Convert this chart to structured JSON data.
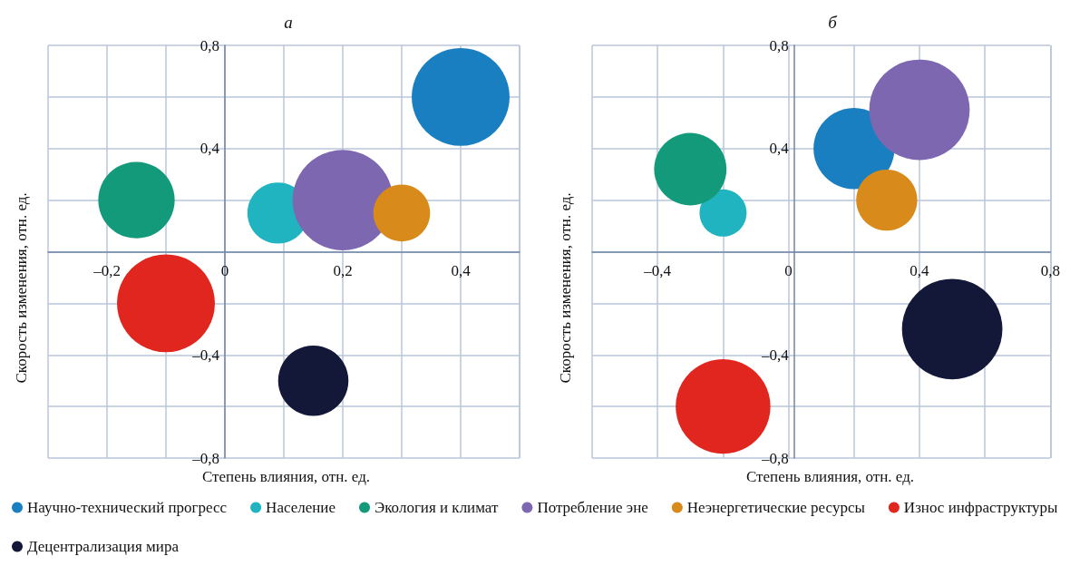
{
  "chart_data": [
    {
      "type": "bubble",
      "title": "а",
      "xlabel": "Степень влияния, отн. ед.",
      "ylabel": "Скорость изменения, отн. ед.",
      "xlim": [
        -0.3,
        0.5
      ],
      "ylim": [
        -0.8,
        0.8
      ],
      "xticks": [
        {
          "value": -0.3,
          "label": null
        },
        {
          "value": -0.2,
          "label": "–0,2"
        },
        {
          "value": -0.1,
          "label": null
        },
        {
          "value": 0,
          "label": "0"
        },
        {
          "value": 0.1,
          "label": null
        },
        {
          "value": 0.2,
          "label": "0,2"
        },
        {
          "value": 0.3,
          "label": null
        },
        {
          "value": 0.4,
          "label": "0,4"
        },
        {
          "value": 0.5,
          "label": null
        }
      ],
      "yticks": [
        {
          "value": -0.8,
          "label": "–0,8"
        },
        {
          "value": -0.6,
          "label": null
        },
        {
          "value": -0.4,
          "label": "–0,4"
        },
        {
          "value": -0.2,
          "label": null
        },
        {
          "value": 0,
          "label": null
        },
        {
          "value": 0.2,
          "label": null
        },
        {
          "value": 0.4,
          "label": "0,4"
        },
        {
          "value": 0.6,
          "label": null
        },
        {
          "value": 0.8,
          "label": "0,8"
        }
      ],
      "grid": true,
      "legend": "bottom",
      "marker": "circle",
      "series": [
        {
          "name": "Научно-технический прогресс",
          "color": "#1a7fc0",
          "x": [
            0.4
          ],
          "values": [
            0.6
          ],
          "sizes": [
            0.95
          ]
        },
        {
          "name": "Население",
          "color": "#20b3c0",
          "x": [
            0.09
          ],
          "values": [
            0.15
          ],
          "sizes": [
            0.37
          ]
        },
        {
          "name": "Экология и климат",
          "color": "#139a7a",
          "x": [
            -0.15
          ],
          "values": [
            0.2
          ],
          "sizes": [
            0.58
          ]
        },
        {
          "name": "Потребление эне",
          "color": "#7d67b0",
          "x": [
            0.2
          ],
          "values": [
            0.2
          ],
          "sizes": [
            1
          ]
        },
        {
          "name": "Неэнергетические ресурсы",
          "color": "#d88a1a",
          "x": [
            0.3
          ],
          "values": [
            0.15
          ],
          "sizes": [
            0.32
          ]
        },
        {
          "name": "Износ инфраструктуры",
          "color": "#e0261e",
          "x": [
            -0.1
          ],
          "values": [
            -0.2
          ],
          "sizes": [
            0.95
          ]
        },
        {
          "name": "Децентрализация мира",
          "color": "#141838",
          "x": [
            0.15
          ],
          "values": [
            -0.5
          ],
          "sizes": [
            0.49
          ]
        }
      ]
    },
    {
      "type": "bubble",
      "title": "б",
      "xlabel": "Степень влияния, отн. ед.",
      "ylabel": "Скорость изменения, отн. ед.",
      "xlim": [
        -0.6,
        0.8
      ],
      "ylim": [
        -0.8,
        0.8
      ],
      "xticks": [
        {
          "value": -0.6,
          "label": null
        },
        {
          "value": -0.4,
          "label": "–0,4"
        },
        {
          "value": -0.2,
          "label": null
        },
        {
          "value": 0,
          "label": "0"
        },
        {
          "value": 0.2,
          "label": null
        },
        {
          "value": 0.4,
          "label": "0,4"
        },
        {
          "value": 0.6,
          "label": null
        },
        {
          "value": 0.8,
          "label": "0,8"
        }
      ],
      "yticks": [
        {
          "value": -0.8,
          "label": "–0,8"
        },
        {
          "value": -0.6,
          "label": null
        },
        {
          "value": -0.4,
          "label": "–0,4"
        },
        {
          "value": -0.2,
          "label": null
        },
        {
          "value": 0,
          "label": null
        },
        {
          "value": 0.2,
          "label": null
        },
        {
          "value": 0.4,
          "label": "0,4"
        },
        {
          "value": 0.6,
          "label": null
        },
        {
          "value": 0.8,
          "label": "0,8"
        }
      ],
      "grid": true,
      "marker": "circle",
      "series": [
        {
          "name": "Научно-технический прогресс",
          "color": "#1a7fc0",
          "x": [
            0.2
          ],
          "values": [
            0.4
          ],
          "sizes": [
            0.65
          ]
        },
        {
          "name": "Население",
          "color": "#20b3c0",
          "x": [
            -0.2
          ],
          "values": [
            0.15
          ],
          "sizes": [
            0.22
          ]
        },
        {
          "name": "Экология и климат",
          "color": "#139a7a",
          "x": [
            -0.3
          ],
          "values": [
            0.32
          ],
          "sizes": [
            0.52
          ]
        },
        {
          "name": "Потребление эне",
          "color": "#7d67b0",
          "x": [
            0.4
          ],
          "values": [
            0.55
          ],
          "sizes": [
            1
          ]
        },
        {
          "name": "Неэнергетические ресурсы",
          "color": "#d88a1a",
          "x": [
            0.3
          ],
          "values": [
            0.2
          ],
          "sizes": [
            0.37
          ]
        },
        {
          "name": "Износ инфраструктуры",
          "color": "#e0261e",
          "x": [
            -0.2
          ],
          "values": [
            -0.6
          ],
          "sizes": [
            0.89
          ]
        },
        {
          "name": "Децентрализация мира",
          "color": "#141838",
          "x": [
            0.5
          ],
          "values": [
            -0.3
          ],
          "sizes": [
            1
          ]
        }
      ]
    }
  ]
}
